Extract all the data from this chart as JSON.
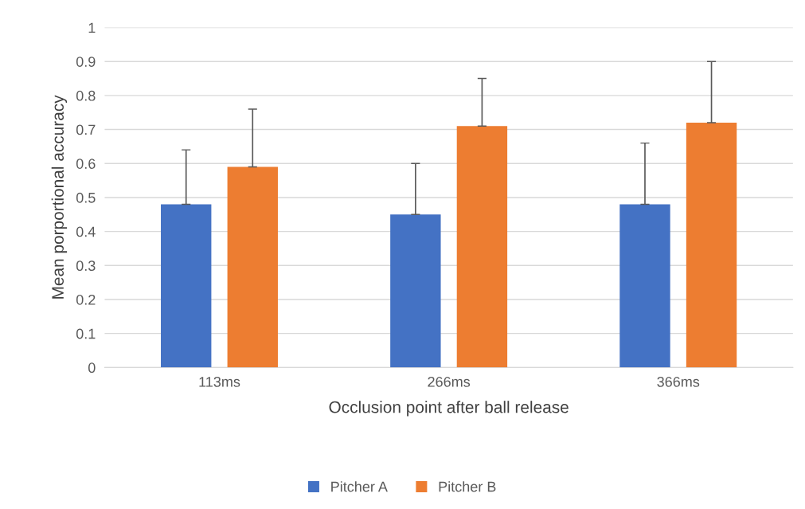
{
  "chart_data": {
    "type": "bar",
    "xlabel": "Occlusion point after ball release",
    "ylabel": "Mean porportional accuracy",
    "categories": [
      "113ms",
      "266ms",
      "366ms"
    ],
    "series": [
      {
        "name": "Pitcher A",
        "color": "#4472c4",
        "values": [
          0.48,
          0.45,
          0.48
        ],
        "errors": [
          [
            0.48,
            0.64
          ],
          [
            0.45,
            0.6
          ],
          [
            0.48,
            0.66
          ]
        ]
      },
      {
        "name": "Pitcher B",
        "color": "#ed7d31",
        "values": [
          0.59,
          0.71,
          0.72
        ],
        "errors": [
          [
            0.59,
            0.76
          ],
          [
            0.71,
            0.85
          ],
          [
            0.72,
            0.9
          ]
        ]
      }
    ],
    "ylim": [
      0,
      1
    ],
    "yticks": [
      0,
      {
        "value": 0.1,
        "label": "0.1"
      },
      {
        "value": 0.2,
        "label": "0.2"
      },
      {
        "value": 0.3,
        "label": "0.3"
      },
      {
        "value": 0.4,
        "label": "0.4"
      },
      {
        "value": 0.5,
        "label": "0.5"
      },
      {
        "value": 0.6,
        "label": "0.6"
      },
      {
        "value": 0.7,
        "label": "0.7"
      },
      {
        "value": 0.8,
        "label": "0.8"
      },
      {
        "value": 0.9,
        "label": "0.9"
      },
      1
    ],
    "grid": "y",
    "legend": "bottom"
  }
}
